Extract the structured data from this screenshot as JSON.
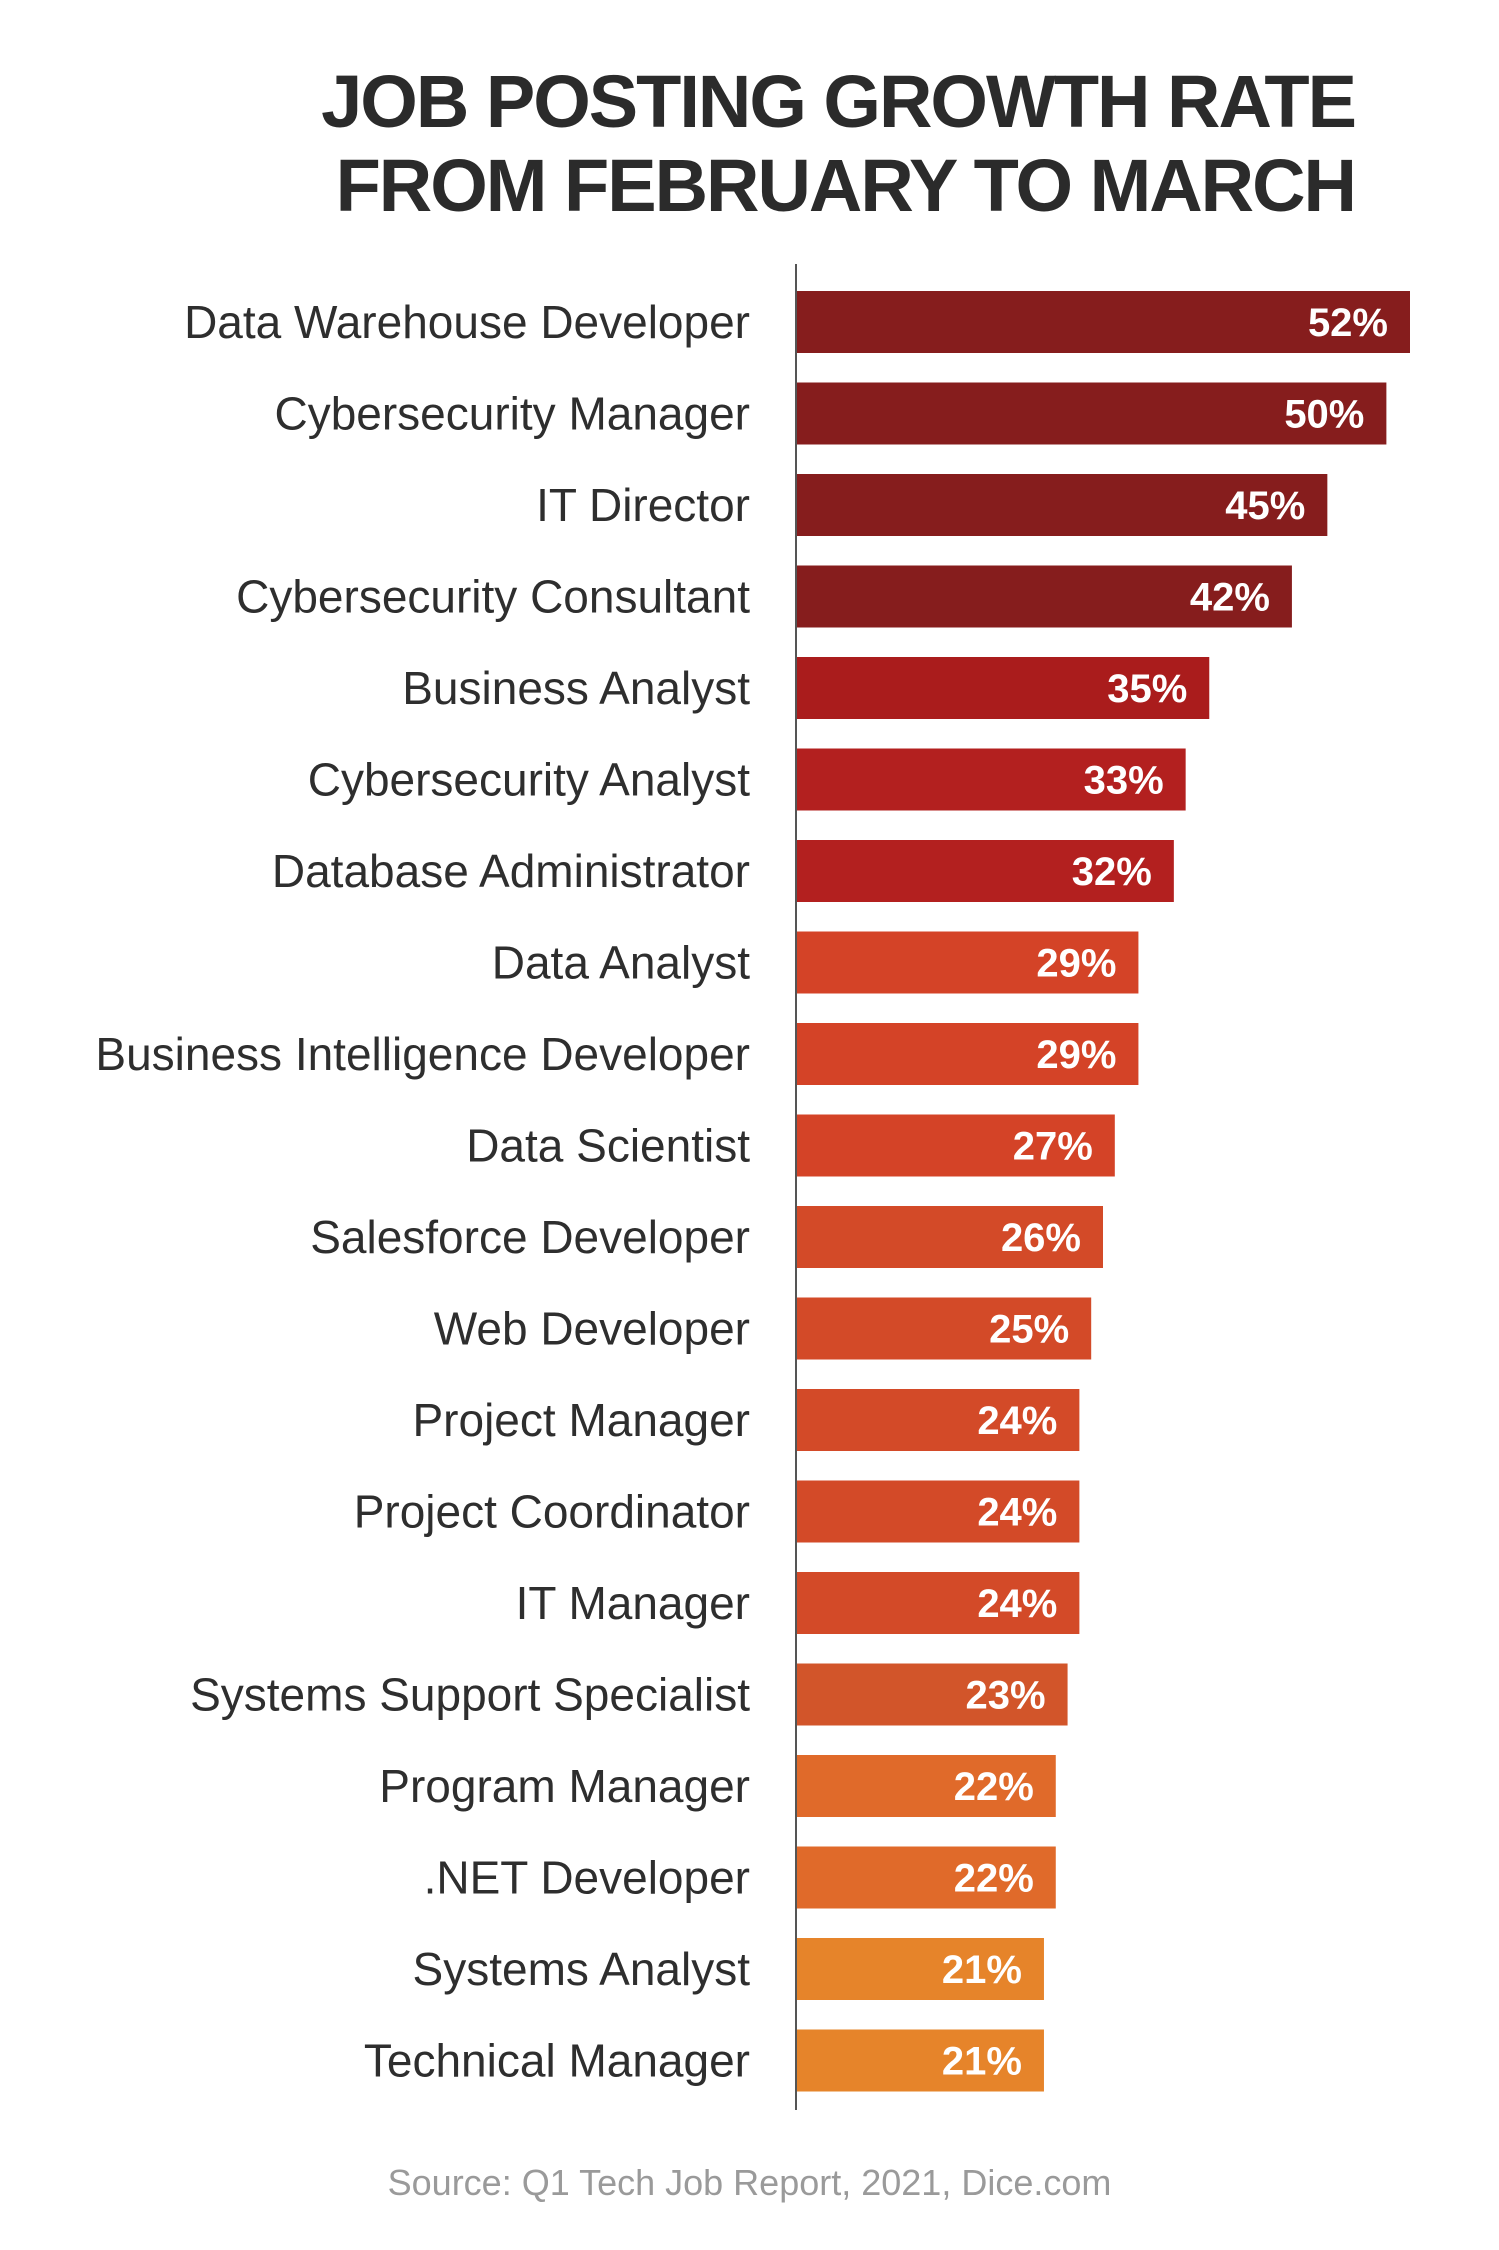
{
  "title": {
    "line1": "JOB POSTING GROWTH RATE",
    "line2": "FROM FEBRUARY TO MARCH"
  },
  "source": "Source: Q1 Tech Job Report, 2021, Dice.com",
  "chart_data": {
    "type": "bar",
    "orientation": "horizontal",
    "categories": [
      "Data Warehouse Developer",
      "Cybersecurity Manager",
      "IT Director",
      "Cybersecurity Consultant",
      "Business Analyst",
      "Cybersecurity Analyst",
      "Database Administrator",
      "Data Analyst",
      "Business Intelligence Developer",
      "Data Scientist",
      "Salesforce Developer",
      "Web Developer",
      "Project Manager",
      "Project Coordinator",
      "IT Manager",
      "Systems Support Specialist",
      "Program Manager",
      ".NET Developer",
      "Systems Analyst",
      "Technical Manager"
    ],
    "values": [
      52,
      50,
      45,
      42,
      35,
      33,
      32,
      29,
      29,
      27,
      26,
      25,
      24,
      24,
      24,
      23,
      22,
      22,
      21,
      21
    ],
    "labels": [
      "52%",
      "50%",
      "45%",
      "42%",
      "35%",
      "33%",
      "32%",
      "29%",
      "29%",
      "27%",
      "26%",
      "25%",
      "24%",
      "24%",
      "24%",
      "23%",
      "22%",
      "22%",
      "21%",
      "21%"
    ],
    "colors": [
      "#861d1d",
      "#861d1d",
      "#861d1d",
      "#861d1d",
      "#aa1c1c",
      "#b3201f",
      "#b3201f",
      "#d44327",
      "#d44327",
      "#d44327",
      "#d34a28",
      "#d34a28",
      "#d34a28",
      "#d34a28",
      "#d34a28",
      "#d2552a",
      "#e06a2a",
      "#e06a2a",
      "#e6842a",
      "#e6842a"
    ],
    "unit": "%",
    "xlim": [
      0,
      52
    ]
  }
}
